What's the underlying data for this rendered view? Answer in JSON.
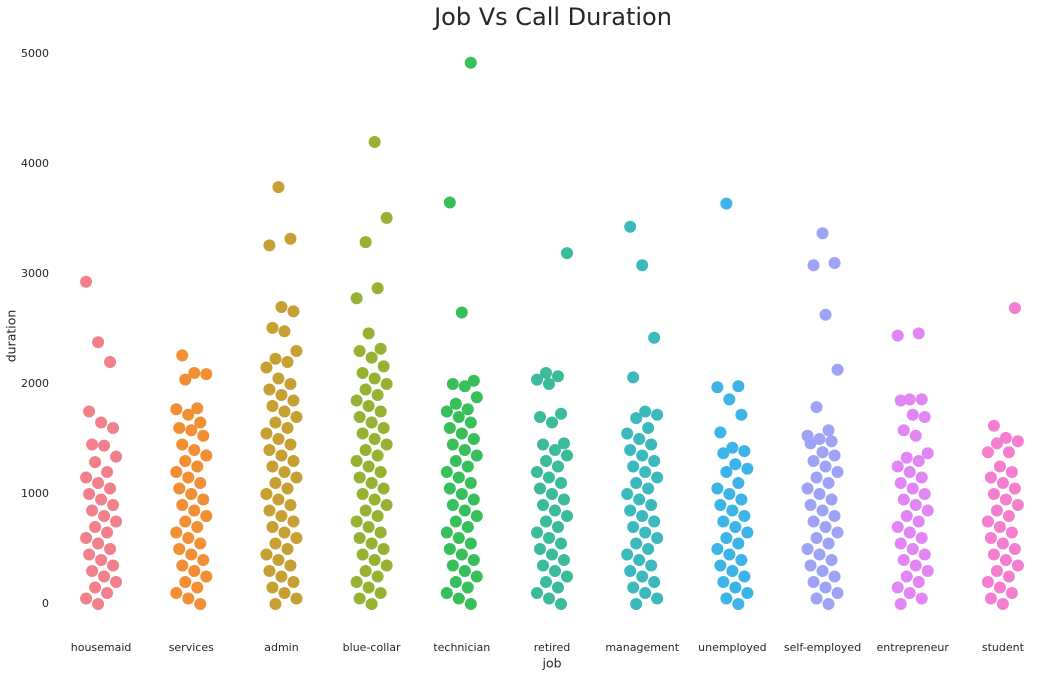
{
  "chart_data": {
    "type": "strip",
    "title": "Job Vs Call Duration",
    "x_label": "job",
    "y_label": "duration",
    "categories": [
      "housemaid",
      "services",
      "admin",
      "blue-collar",
      "technician",
      "retired",
      "management",
      "unemployed",
      "self-employed",
      "entrepreneur",
      "student"
    ],
    "colors": [
      "#f1808c",
      "#f28e34",
      "#c6a032",
      "#97b232",
      "#37c05a",
      "#3bbb9c",
      "#3bb9bd",
      "#3db4e7",
      "#9ea3f5",
      "#e186f4",
      "#f57fce"
    ],
    "values": [
      [
        2930,
        2380,
        2200,
        1750,
        1650,
        1600,
        1450,
        1440,
        1340,
        1290,
        1200,
        1150,
        1100,
        1050,
        1000,
        950,
        900,
        850,
        800,
        750,
        700,
        650,
        600,
        550,
        500,
        450,
        400,
        350,
        300,
        250,
        200,
        150,
        100,
        50,
        0
      ],
      [
        2260,
        2100,
        2090,
        2040,
        1780,
        1770,
        1720,
        1650,
        1600,
        1580,
        1530,
        1450,
        1400,
        1350,
        1300,
        1250,
        1200,
        1150,
        1100,
        1050,
        1000,
        950,
        900,
        850,
        800,
        750,
        700,
        650,
        600,
        550,
        500,
        450,
        400,
        350,
        300,
        250,
        200,
        150,
        100,
        50,
        0
      ],
      [
        3790,
        3320,
        3260,
        2700,
        2660,
        2510,
        2480,
        2300,
        2230,
        2200,
        2150,
        2050,
        2000,
        1950,
        1900,
        1850,
        1800,
        1750,
        1700,
        1650,
        1600,
        1550,
        1500,
        1450,
        1400,
        1350,
        1300,
        1250,
        1200,
        1150,
        1100,
        1050,
        1000,
        950,
        900,
        850,
        800,
        750,
        700,
        650,
        600,
        550,
        500,
        450,
        400,
        350,
        300,
        250,
        200,
        150,
        100,
        50,
        0
      ],
      [
        4200,
        3510,
        3290,
        2870,
        2780,
        2460,
        2320,
        2300,
        2240,
        2160,
        2100,
        2050,
        2000,
        1950,
        1900,
        1850,
        1800,
        1750,
        1700,
        1650,
        1600,
        1550,
        1500,
        1450,
        1400,
        1350,
        1300,
        1250,
        1200,
        1150,
        1100,
        1050,
        1000,
        950,
        900,
        850,
        800,
        750,
        700,
        650,
        600,
        550,
        500,
        450,
        400,
        350,
        300,
        250,
        200,
        150,
        100,
        50,
        0
      ],
      [
        4920,
        3650,
        2650,
        2030,
        2000,
        1980,
        1880,
        1820,
        1770,
        1750,
        1700,
        1650,
        1600,
        1550,
        1500,
        1450,
        1400,
        1350,
        1300,
        1250,
        1200,
        1150,
        1100,
        1050,
        1000,
        950,
        900,
        850,
        800,
        750,
        700,
        650,
        600,
        550,
        500,
        450,
        400,
        350,
        300,
        250,
        200,
        150,
        100,
        50,
        0
      ],
      [
        3190,
        2100,
        2070,
        2040,
        2000,
        1730,
        1700,
        1650,
        1460,
        1450,
        1400,
        1350,
        1300,
        1250,
        1200,
        1150,
        1100,
        1050,
        1000,
        950,
        900,
        850,
        800,
        750,
        700,
        650,
        600,
        550,
        500,
        450,
        400,
        350,
        300,
        250,
        200,
        150,
        100,
        50,
        0
      ],
      [
        3430,
        3080,
        2420,
        2060,
        1750,
        1720,
        1690,
        1600,
        1550,
        1500,
        1450,
        1400,
        1350,
        1300,
        1250,
        1200,
        1150,
        1100,
        1050,
        1000,
        950,
        900,
        850,
        800,
        750,
        700,
        650,
        600,
        550,
        500,
        450,
        400,
        350,
        300,
        250,
        200,
        150,
        100,
        50,
        0
      ],
      [
        3640,
        1980,
        1970,
        1860,
        1720,
        1560,
        1420,
        1390,
        1370,
        1270,
        1230,
        1200,
        1100,
        1050,
        1000,
        950,
        900,
        850,
        800,
        750,
        700,
        650,
        600,
        550,
        500,
        450,
        400,
        350,
        300,
        250,
        200,
        150,
        100,
        50,
        0
      ],
      [
        3370,
        3100,
        3080,
        2630,
        2130,
        1790,
        1580,
        1530,
        1500,
        1480,
        1460,
        1380,
        1350,
        1300,
        1250,
        1200,
        1150,
        1100,
        1050,
        1000,
        950,
        900,
        850,
        800,
        750,
        700,
        650,
        600,
        550,
        500,
        450,
        400,
        350,
        300,
        250,
        200,
        150,
        100,
        50,
        0
      ],
      [
        2460,
        2440,
        1860,
        1860,
        1850,
        1720,
        1700,
        1580,
        1530,
        1370,
        1330,
        1300,
        1250,
        1200,
        1150,
        1100,
        1050,
        1000,
        950,
        900,
        850,
        800,
        750,
        700,
        650,
        600,
        550,
        500,
        450,
        400,
        350,
        300,
        250,
        200,
        150,
        100,
        50,
        0
      ],
      [
        2690,
        1620,
        1510,
        1480,
        1460,
        1380,
        1380,
        1250,
        1200,
        1150,
        1100,
        1050,
        1000,
        950,
        900,
        850,
        800,
        750,
        700,
        650,
        600,
        550,
        500,
        450,
        400,
        350,
        300,
        250,
        200,
        150,
        100,
        50,
        0
      ]
    ],
    "ylim": [
      -300,
      5150
    ],
    "yticks": [
      0,
      1000,
      2000,
      3000,
      4000,
      5000
    ],
    "grid": false
  }
}
